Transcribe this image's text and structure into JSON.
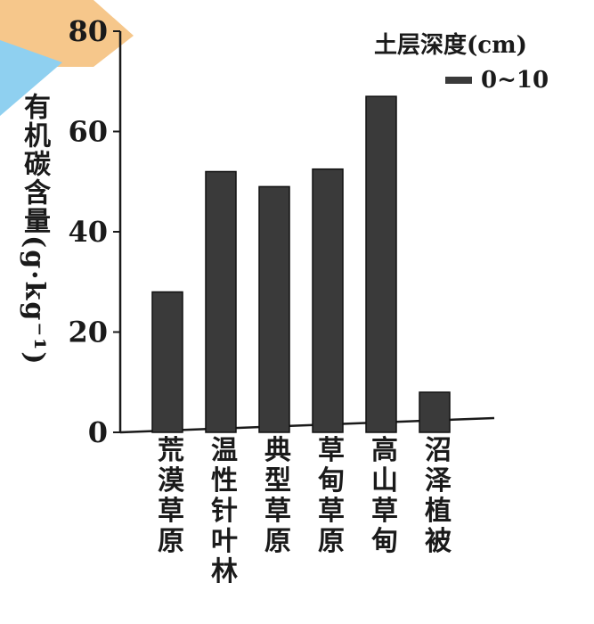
{
  "chart_data": {
    "type": "bar",
    "ylabel": "有机碳含量(g·kg⁻¹)",
    "ylim": [
      0,
      80
    ],
    "yticks": [
      0,
      20,
      40,
      60,
      80
    ],
    "categories": [
      "荒漠草原",
      "温性针叶林",
      "典型草原",
      "草甸草原",
      "高山草甸",
      "沼泽植被"
    ],
    "series": [
      {
        "name": "0~10",
        "values": [
          28,
          52,
          49,
          52.5,
          67,
          8
        ]
      }
    ],
    "legend": {
      "title": "土层深度(cm)",
      "position": "top-right"
    },
    "grid": false,
    "colors": {
      "bar": "#3a3a3a",
      "axis": "#1a1a1a",
      "decor_orange": "#f6c78b",
      "decor_blue": "#8fd0f0"
    }
  }
}
